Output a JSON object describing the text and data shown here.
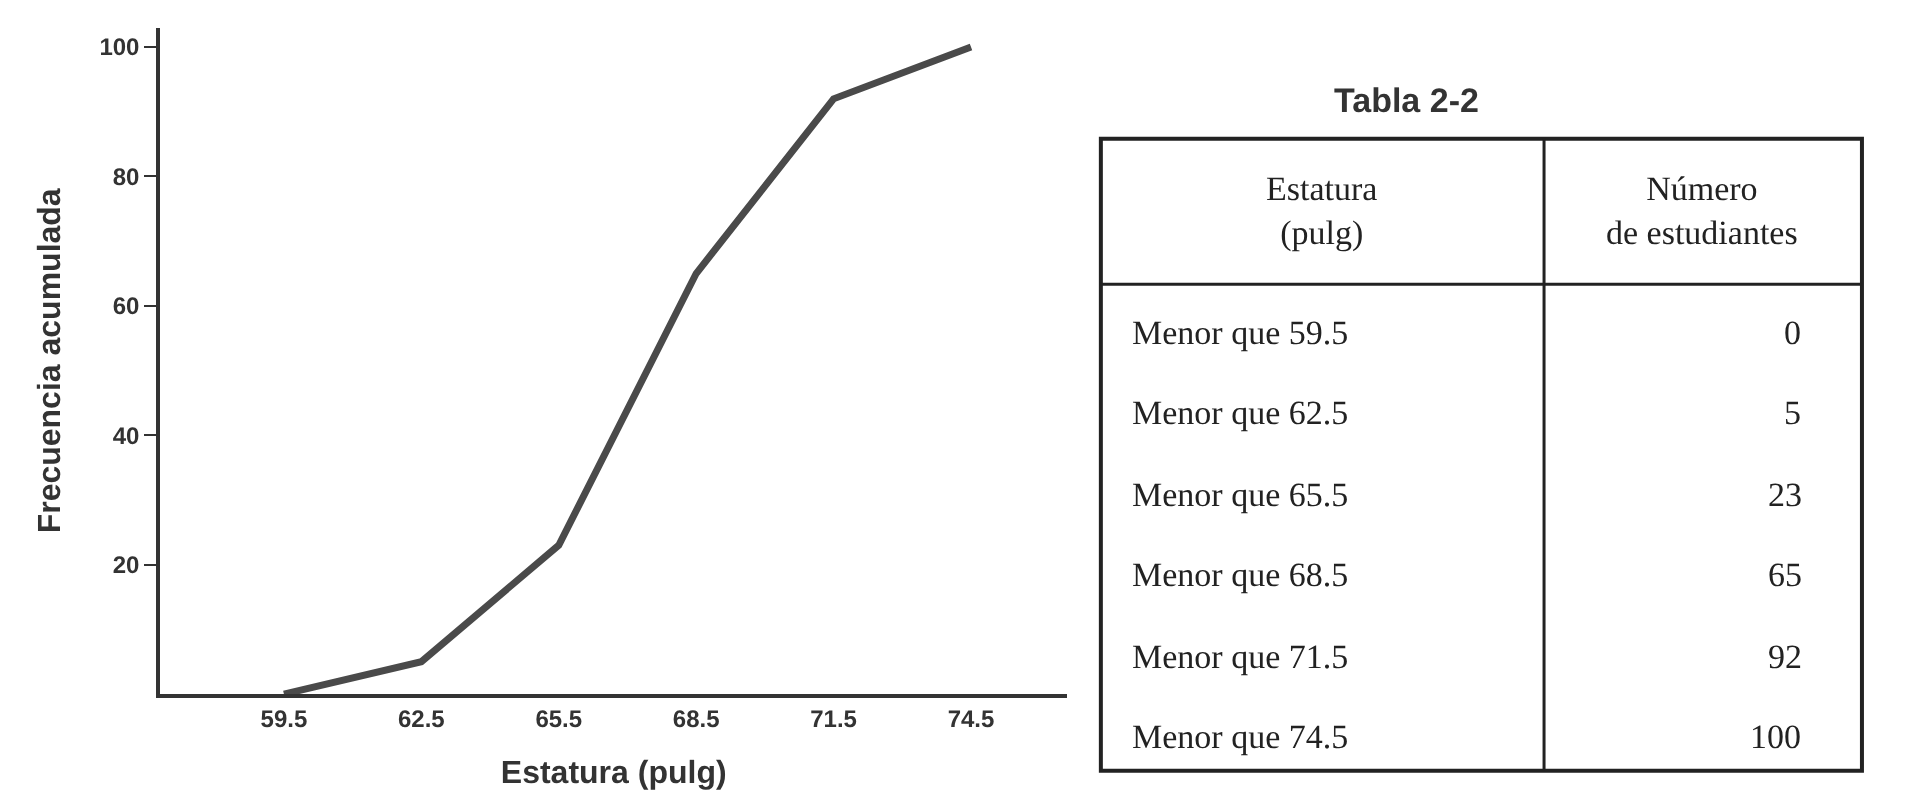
{
  "chart_data": [
    {
      "type": "line",
      "xlabel": "Estatura (pulg)",
      "ylabel": "Frecuencia acumulada",
      "x": [
        59.5,
        62.5,
        65.5,
        68.5,
        71.5,
        74.5
      ],
      "series": [
        {
          "color": "#4a4a4a",
          "values": [
            0,
            5,
            23,
            65,
            92,
            100
          ]
        }
      ],
      "xlim": [
        56.8,
        76.6
      ],
      "xticks": [
        59.5,
        62.5,
        65.5,
        68.5,
        71.5,
        74.5
      ],
      "ylim": [
        0,
        103
      ],
      "yticks": [
        20,
        40,
        60,
        80,
        100
      ],
      "legend": false,
      "marker": "none",
      "line_style": "solid"
    },
    {
      "type": "other",
      "title": "Tabla 2-2",
      "annotations": [
        "Estatura\n(pulg)",
        "Número\nde estudiantes",
        "Menor que 59.5",
        "0",
        "Menor que 62.5",
        "5",
        "Menor que 65.5",
        "23",
        "Menor que 68.5",
        "65",
        "Menor que 71.5",
        "92",
        "Menor que 74.5",
        "100"
      ]
    }
  ]
}
